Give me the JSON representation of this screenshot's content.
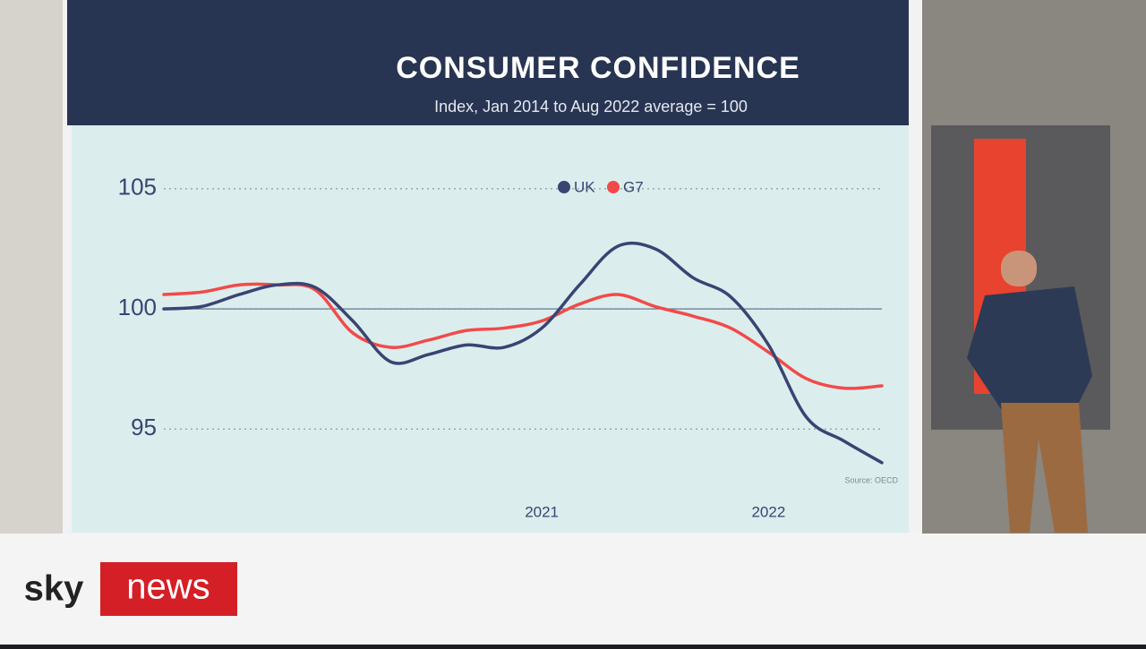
{
  "chart_data": {
    "type": "line",
    "title": "CONSUMER CONFIDENCE",
    "subtitle": "Index, Jan 2014 to Aug 2022 average = 100",
    "source": "Source: OECD",
    "categories": [
      null,
      null,
      null,
      null,
      null,
      null,
      null,
      null,
      null,
      null,
      "2021",
      null,
      null,
      null,
      null,
      null,
      "2022",
      null,
      null,
      null
    ],
    "series": [
      {
        "name": "UK",
        "color": "#3b4373",
        "values": [
          100,
          100.1,
          100.6,
          101,
          100.9,
          99.5,
          97.8,
          98.1,
          98.5,
          98.4,
          99.2,
          101,
          102.6,
          102.5,
          101.3,
          100.5,
          98.5,
          95.5,
          94.5,
          93.6
        ]
      },
      {
        "name": "G7",
        "color": "#f24a4a",
        "values": [
          100.6,
          100.7,
          101,
          101,
          100.8,
          99,
          98.4,
          98.7,
          99.1,
          99.2,
          99.5,
          100.2,
          100.6,
          100.1,
          99.7,
          99.2,
          98.2,
          97.1,
          96.7,
          96.8
        ]
      }
    ],
    "ylim": [
      93,
      106
    ],
    "yticks": [
      95,
      100,
      105
    ],
    "reference_line": 100,
    "grid": true,
    "legend": "top"
  },
  "broadcast": {
    "logo_left": "sky",
    "logo_right": "news"
  }
}
